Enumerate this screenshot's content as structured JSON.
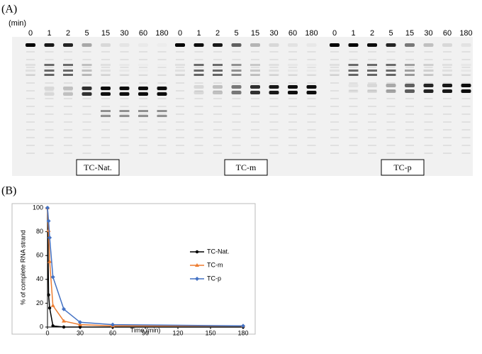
{
  "panel_a": {
    "label": "(A)",
    "unit": "(min)",
    "groups": [
      {
        "name": "TC-Nat.",
        "lanes": [
          0,
          1,
          2,
          5,
          15,
          30,
          60,
          180
        ]
      },
      {
        "name": "TC-m",
        "lanes": [
          0,
          1,
          2,
          5,
          15,
          30,
          60,
          180
        ]
      },
      {
        "name": "TC-p",
        "lanes": [
          0,
          1,
          2,
          5,
          15,
          30,
          60,
          180
        ]
      }
    ]
  },
  "panel_b": {
    "label": "(B)"
  },
  "chart_data": {
    "type": "line",
    "x_label": "Time (min)",
    "y_label": "% of complete RNA strand",
    "x": [
      0,
      1,
      2,
      5,
      15,
      30,
      60,
      180
    ],
    "series": [
      {
        "name": "TC-Nat.",
        "color": "#000000",
        "marker": "circle",
        "values": [
          100,
          27,
          16,
          1,
          0,
          0,
          0,
          0
        ]
      },
      {
        "name": "TC-m",
        "color": "#ed7d31",
        "marker": "triangle",
        "values": [
          100,
          81,
          55,
          18,
          5,
          2,
          1,
          1
        ]
      },
      {
        "name": "TC-p",
        "color": "#4472c4",
        "marker": "diamond",
        "values": [
          100,
          89,
          75,
          42,
          15,
          4,
          2,
          1
        ]
      }
    ],
    "xlim": [
      0,
      180
    ],
    "xticks": [
      0,
      30,
      60,
      90,
      120,
      150,
      180
    ],
    "ylim": [
      0,
      100
    ],
    "yticks": [
      0,
      20,
      40,
      60,
      80,
      100
    ],
    "legend": "right"
  }
}
